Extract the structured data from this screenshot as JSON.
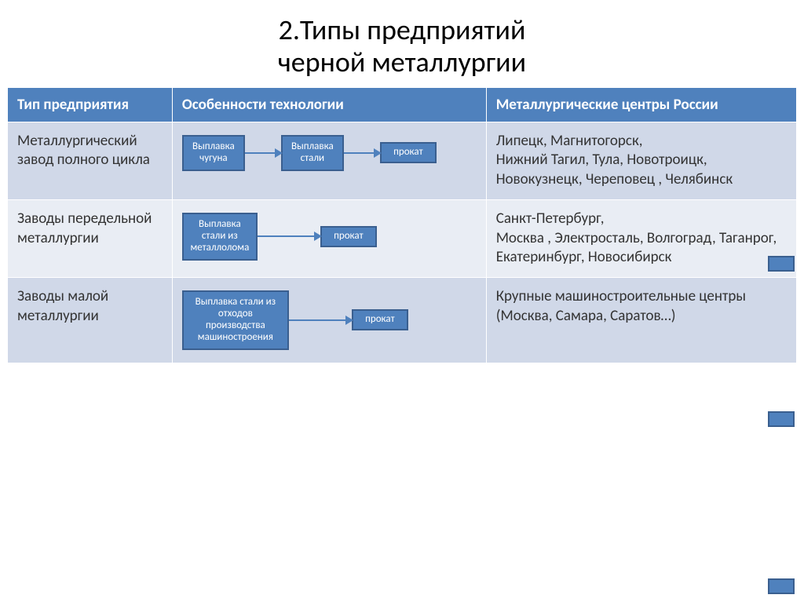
{
  "title": "2.Типы предприятий\nчерной металлургии",
  "colors": {
    "header_bg": "#4f81bd",
    "header_text": "#ffffff",
    "row_odd": "#d0d8e8",
    "row_even": "#e9edf4",
    "node_fill": "#4f81bd",
    "node_border": "#3a5f8f",
    "arrow": "#4f81bd",
    "text": "#333333"
  },
  "columns": {
    "c1": "Тип предприятия",
    "c2": "Особенности технологии",
    "c3": "Металлургические центры России"
  },
  "rows": [
    {
      "type_name": "Металлургический завод полного цикла",
      "flow": {
        "nodes": [
          "Выплавка чугуна",
          "Выплавка стали",
          "прокат"
        ]
      },
      "centers": "Липецк, Магнитогорск,\nНижний Тагил,    Тула, Новотроицк, Новокузнецк, Череповец ,  Челябинск"
    },
    {
      "type_name": "Заводы передельной металлургии",
      "flow": {
        "nodes": [
          "Выплавка стали из металлолома",
          "прокат"
        ]
      },
      "centers": "Санкт-Петербург,\nМосква ,  Электросталь, Волгоград,    Таганрог, Екатеринбург, Новосибирск"
    },
    {
      "type_name": "Заводы малой металлургии",
      "flow": {
        "nodes": [
          "Выплавка стали из отходов производства машиностроения",
          "прокат"
        ]
      },
      "centers": "Крупные машиностроительные центры (Москва, Самара, Саратов…)"
    }
  ]
}
